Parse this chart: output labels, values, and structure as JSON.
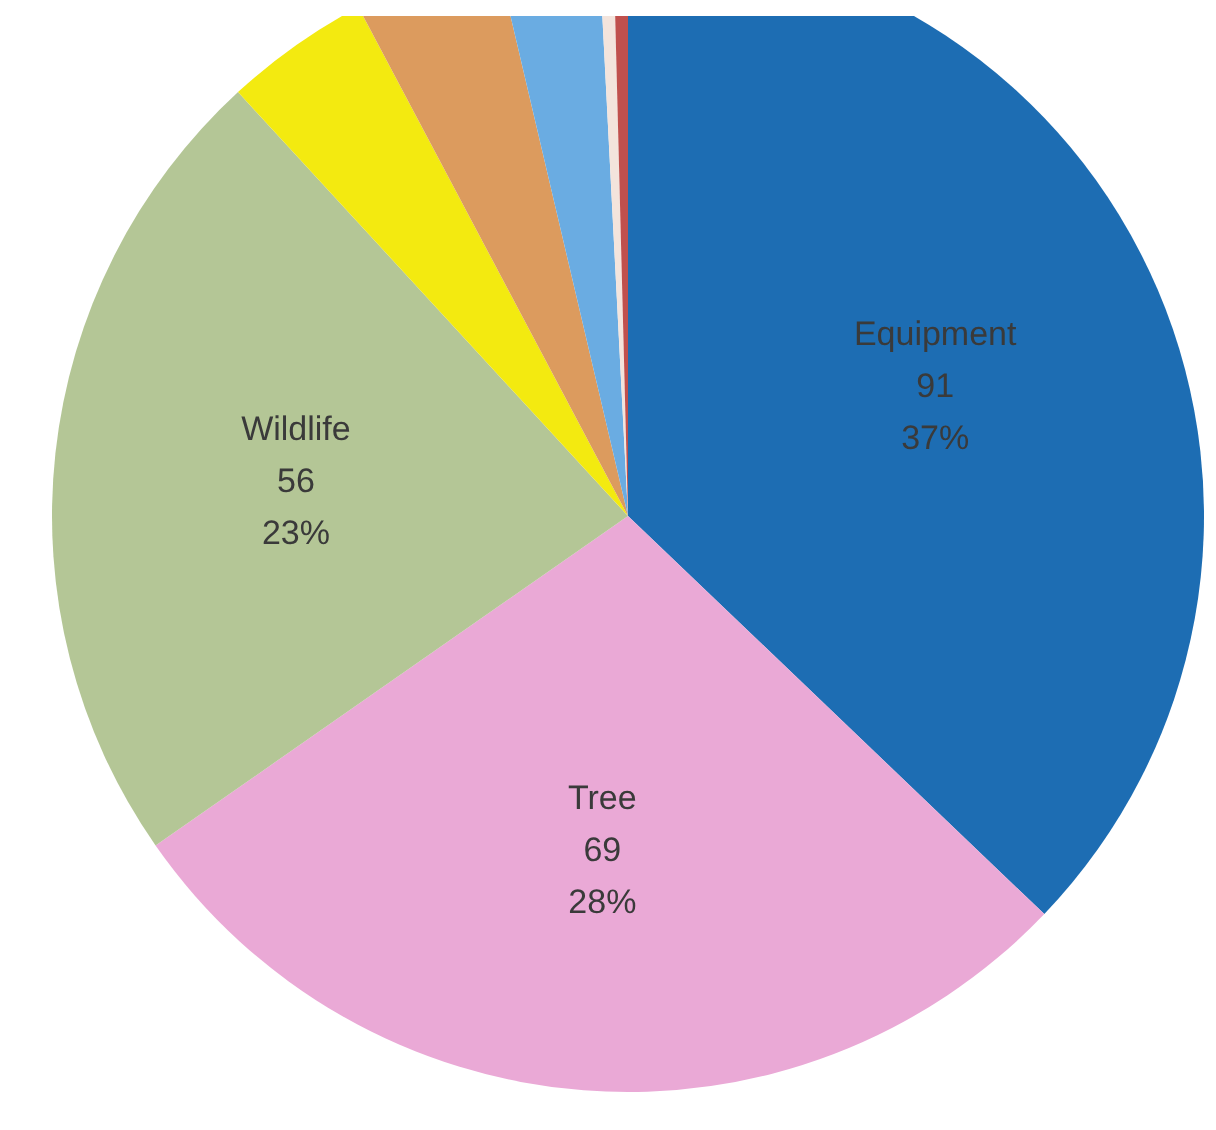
{
  "chart_data": {
    "type": "pie",
    "categories": [
      "Equipment",
      "Tree",
      "Wildlife",
      null,
      null,
      null,
      null,
      null
    ],
    "values": [
      91,
      69,
      56,
      10,
      10,
      7,
      1,
      1
    ],
    "colors": [
      "#1d6db3",
      "#eaa9d6",
      "#b4c696",
      "#f3ea10",
      "#dc9b5e",
      "#6aace2",
      "#f3e4dc",
      "#c0504d"
    ],
    "value_labels": [
      "91\n37%",
      "69\n28%",
      "56\n23%",
      null,
      null,
      null,
      null,
      null
    ]
  }
}
